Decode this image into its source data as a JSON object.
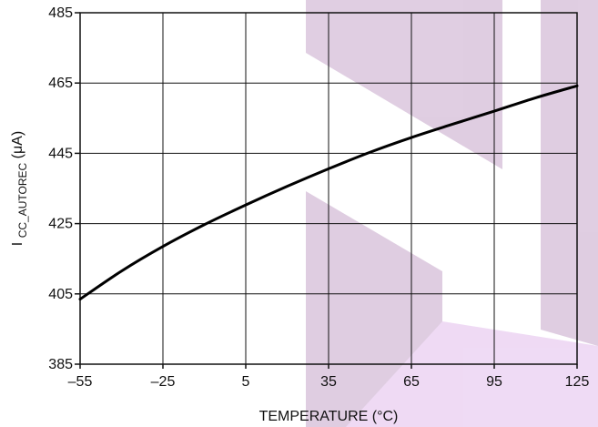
{
  "chart_data": {
    "type": "line",
    "xlabel": "TEMPERATURE (°C)",
    "ylabel": {
      "main": "I",
      "subscript": "CC_AUTOREC",
      "unit": " (μA)"
    },
    "xlim": [
      -55,
      125
    ],
    "ylim": [
      385,
      485
    ],
    "x_ticks": [
      -55,
      -25,
      5,
      35,
      65,
      95,
      125
    ],
    "x_tick_labels": [
      "–55",
      "–25",
      "5",
      "35",
      "65",
      "95",
      "125"
    ],
    "y_ticks": [
      385,
      405,
      425,
      445,
      465,
      485
    ],
    "y_tick_labels": [
      "385",
      "405",
      "425",
      "445",
      "465",
      "485"
    ],
    "grid": true,
    "series": [
      {
        "x": [
          -55,
          -40,
          -25,
          -10,
          5,
          20,
          35,
          50,
          65,
          80,
          95,
          110,
          125
        ],
        "y": [
          403.5,
          411.5,
          418.5,
          424.7,
          430.3,
          435.6,
          440.6,
          445.3,
          449.5,
          453.3,
          457.0,
          460.8,
          464.2
        ]
      }
    ],
    "watermark_color": "#8e4f97"
  }
}
